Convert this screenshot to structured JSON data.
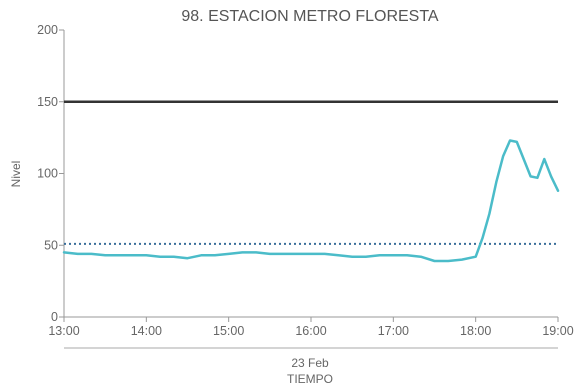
{
  "chart_data": {
    "type": "line",
    "title": "98. ESTACION METRO FLORESTA",
    "ylabel": "Nivel",
    "xlabel": "TIEMPO",
    "date_label": "23 Feb",
    "ylim": [
      0,
      200
    ],
    "y_ticks": [
      0,
      50,
      100,
      150,
      200
    ],
    "x_range": [
      "13:00",
      "19:00"
    ],
    "x_ticks": [
      "13:00",
      "14:00",
      "15:00",
      "16:00",
      "17:00",
      "18:00",
      "19:00"
    ],
    "grid": false,
    "legend": "none",
    "reference_lines": [
      {
        "value": 150,
        "style": "solid",
        "color": "#333333"
      },
      {
        "value": 51,
        "style": "dotted",
        "color": "#3a6e9a"
      }
    ],
    "series": [
      {
        "color": "#4bbcc9",
        "points": [
          [
            "13:00",
            45
          ],
          [
            "13:10",
            44
          ],
          [
            "13:20",
            44
          ],
          [
            "13:30",
            43
          ],
          [
            "13:40",
            43
          ],
          [
            "13:50",
            43
          ],
          [
            "14:00",
            43
          ],
          [
            "14:10",
            42
          ],
          [
            "14:20",
            42
          ],
          [
            "14:30",
            41
          ],
          [
            "14:40",
            43
          ],
          [
            "14:50",
            43
          ],
          [
            "15:00",
            44
          ],
          [
            "15:10",
            45
          ],
          [
            "15:20",
            45
          ],
          [
            "15:30",
            44
          ],
          [
            "15:40",
            44
          ],
          [
            "15:50",
            44
          ],
          [
            "16:00",
            44
          ],
          [
            "16:10",
            44
          ],
          [
            "16:20",
            43
          ],
          [
            "16:30",
            42
          ],
          [
            "16:40",
            42
          ],
          [
            "16:50",
            43
          ],
          [
            "17:00",
            43
          ],
          [
            "17:10",
            43
          ],
          [
            "17:20",
            42
          ],
          [
            "17:30",
            39
          ],
          [
            "17:40",
            39
          ],
          [
            "17:50",
            40
          ],
          [
            "18:00",
            42
          ],
          [
            "18:05",
            55
          ],
          [
            "18:10",
            72
          ],
          [
            "18:15",
            94
          ],
          [
            "18:20",
            112
          ],
          [
            "18:25",
            123
          ],
          [
            "18:30",
            122
          ],
          [
            "18:35",
            110
          ],
          [
            "18:40",
            98
          ],
          [
            "18:45",
            97
          ],
          [
            "18:50",
            110
          ],
          [
            "18:55",
            98
          ],
          [
            "19:00",
            88
          ]
        ]
      }
    ]
  }
}
